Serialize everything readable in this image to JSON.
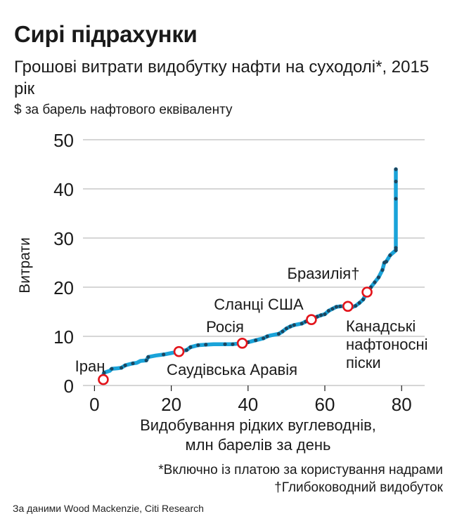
{
  "header": {
    "title": "Сирі підрахунки",
    "subtitle": "Грошові витрати видобутку нафти на суходолі*, 2015 рік",
    "unit": "$ за барель нафтового еквіваленту"
  },
  "chart_data": {
    "type": "line",
    "title": "Сирі підрахунки",
    "xlabel": "Видобування рідких вуглеводнів, млн барелів за день",
    "ylabel": "Витрати",
    "xlim": [
      -3,
      86
    ],
    "ylim": [
      0,
      50
    ],
    "x_ticks": [
      0,
      20,
      40,
      60,
      80
    ],
    "y_ticks": [
      0,
      10,
      20,
      30,
      40,
      50
    ],
    "grid": true,
    "series": [
      {
        "color": "#1aa3d9",
        "dot_color": "#1b4660",
        "points": [
          [
            2,
            1.5
          ],
          [
            2.5,
            2.6
          ],
          [
            4,
            3.0
          ],
          [
            4.5,
            3.4
          ],
          [
            6,
            3.5
          ],
          [
            7,
            3.6
          ],
          [
            8,
            4.1
          ],
          [
            9,
            4.3
          ],
          [
            10,
            4.5
          ],
          [
            11,
            4.6
          ],
          [
            12,
            5.0
          ],
          [
            13.5,
            5.1
          ],
          [
            14,
            5.8
          ],
          [
            16,
            6.1
          ],
          [
            18,
            6.3
          ],
          [
            20,
            6.6
          ],
          [
            22,
            6.9
          ],
          [
            24,
            7.2
          ],
          [
            25,
            7.8
          ],
          [
            27,
            8.2
          ],
          [
            29,
            8.3
          ],
          [
            31,
            8.4
          ],
          [
            34,
            8.4
          ],
          [
            36,
            8.4
          ],
          [
            38.5,
            8.6
          ],
          [
            40,
            8.8
          ],
          [
            42,
            9.2
          ],
          [
            44,
            9.6
          ],
          [
            45,
            10.0
          ],
          [
            46,
            10.2
          ],
          [
            48,
            10.5
          ],
          [
            49,
            11.0
          ],
          [
            50,
            11.6
          ],
          [
            51,
            12.0
          ],
          [
            52,
            12.3
          ],
          [
            54,
            12.6
          ],
          [
            55,
            13.0
          ],
          [
            56.5,
            13.4
          ],
          [
            58,
            14.0
          ],
          [
            59,
            14.3
          ],
          [
            60,
            14.5
          ],
          [
            61,
            15.2
          ],
          [
            62,
            15.6
          ],
          [
            63,
            16.0
          ],
          [
            64,
            16.1
          ],
          [
            66,
            16.1
          ],
          [
            67,
            15.9
          ],
          [
            68,
            16.2
          ],
          [
            69,
            16.8
          ],
          [
            70,
            17.5
          ],
          [
            71,
            19.0
          ],
          [
            72,
            20.0
          ],
          [
            73,
            21.0
          ],
          [
            74,
            22.0
          ],
          [
            75,
            23.5
          ],
          [
            75.5,
            25.0
          ],
          [
            76,
            25.2
          ],
          [
            77,
            26.5
          ],
          [
            78.5,
            27.5
          ],
          [
            78.5,
            28.0
          ],
          [
            78.5,
            38.0
          ],
          [
            78.5,
            41.5
          ],
          [
            78.5,
            44.0
          ]
        ],
        "dots": [
          [
            2.5,
            2.6
          ],
          [
            4.5,
            3.4
          ],
          [
            7,
            3.6
          ],
          [
            8,
            4.1
          ],
          [
            10,
            4.5
          ],
          [
            13.5,
            5.1
          ],
          [
            14,
            5.8
          ],
          [
            18,
            6.3
          ],
          [
            24,
            7.2
          ],
          [
            25,
            7.8
          ],
          [
            27,
            8.2
          ],
          [
            29,
            8.3
          ],
          [
            34,
            8.4
          ],
          [
            36,
            8.4
          ],
          [
            40,
            8.8
          ],
          [
            42,
            9.2
          ],
          [
            44,
            9.6
          ],
          [
            45,
            10.0
          ],
          [
            48,
            10.5
          ],
          [
            49,
            11.0
          ],
          [
            50,
            11.6
          ],
          [
            51,
            12.0
          ],
          [
            52,
            12.3
          ],
          [
            54,
            12.6
          ],
          [
            55,
            13.0
          ],
          [
            58,
            14.0
          ],
          [
            59,
            14.3
          ],
          [
            60,
            14.5
          ],
          [
            61,
            15.2
          ],
          [
            62,
            15.6
          ],
          [
            63,
            16.0
          ],
          [
            64,
            16.1
          ],
          [
            67,
            15.9
          ],
          [
            68,
            16.2
          ],
          [
            69,
            16.8
          ],
          [
            70,
            17.5
          ],
          [
            72,
            20.0
          ],
          [
            73,
            21.0
          ],
          [
            74,
            22.0
          ],
          [
            75,
            23.5
          ],
          [
            75.5,
            25.0
          ],
          [
            76,
            25.2
          ],
          [
            77,
            26.5
          ],
          [
            78.5,
            27.5
          ],
          [
            78.5,
            28.0
          ],
          [
            78.5,
            38.0
          ],
          [
            78.5,
            41.5
          ],
          [
            78.5,
            44.0
          ]
        ]
      }
    ],
    "highlights": [
      {
        "label": "Іран",
        "x": 2.3,
        "y": 1.2
      },
      {
        "label": "Саудівська Аравія",
        "x": 22,
        "y": 6.9
      },
      {
        "label": "Росія",
        "x": 38.5,
        "y": 8.6
      },
      {
        "label": "Сланці США",
        "x": 56.5,
        "y": 13.4
      },
      {
        "label": "Бразилія†",
        "x": 66,
        "y": 16.1
      },
      {
        "label": "Канадські нафтоносні піски",
        "x": 71,
        "y": 19.0
      }
    ]
  },
  "footer": {
    "note1": "*Включно із платою за користування надрами",
    "note2": "†Глибоководний видобуток",
    "source": "За даними Wood Mackenzie, Citi Research"
  },
  "colors": {
    "line": "#1aa3d9",
    "dots": "#1b4660",
    "highlight": "#e3141b",
    "grid": "#bdbdbd"
  }
}
